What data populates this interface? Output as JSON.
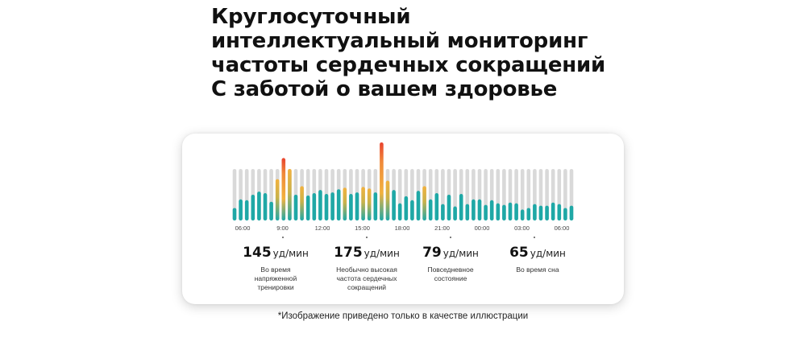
{
  "headline": {
    "line1": "Круглосуточный",
    "line2": "интеллектуальный мониторинг",
    "line3": "частоты сердечных сокращений",
    "line4": "С заботой о вашем здоровье"
  },
  "chart_data": {
    "type": "bar",
    "x_tick_labels": [
      "06:00",
      "9:00",
      "12:00",
      "15:00",
      "18:00",
      "21:00",
      "00:00",
      "03:00",
      "06:00"
    ],
    "values": [
      0.16,
      0.27,
      0.26,
      0.33,
      0.37,
      0.35,
      0.24,
      0.53,
      0.8,
      0.66,
      0.33,
      0.44,
      0.32,
      0.35,
      0.39,
      0.34,
      0.36,
      0.4,
      0.42,
      0.34,
      0.36,
      0.43,
      0.41,
      0.36,
      1.0,
      0.51,
      0.39,
      0.22,
      0.31,
      0.26,
      0.38,
      0.44,
      0.27,
      0.35,
      0.21,
      0.33,
      0.18,
      0.34,
      0.21,
      0.27,
      0.27,
      0.2,
      0.26,
      0.22,
      0.2,
      0.23,
      0.22,
      0.14,
      0.16,
      0.21,
      0.19,
      0.19,
      0.23,
      0.21,
      0.16,
      0.19
    ],
    "colors": {
      "track": "#d9d9d9",
      "low": "#1fa8a6",
      "mid": "#f2b23e",
      "high": "#e8432e"
    }
  },
  "stats": [
    {
      "value": "145",
      "unit": "уд/мин",
      "desc": [
        "Во время",
        "напряженной",
        "тренировки"
      ]
    },
    {
      "value": "175",
      "unit": "уд/мин",
      "desc": [
        "Необычно высокая",
        "частота сердечных",
        "сокращений"
      ]
    },
    {
      "value": "79",
      "unit": "уд/мин",
      "desc": [
        "Повседневное",
        "состояние"
      ]
    },
    {
      "value": "65",
      "unit": "уд/мин",
      "desc": [
        "Во время сна"
      ]
    }
  ],
  "footnote": "*Изображение приведено только в качестве иллюстрации"
}
